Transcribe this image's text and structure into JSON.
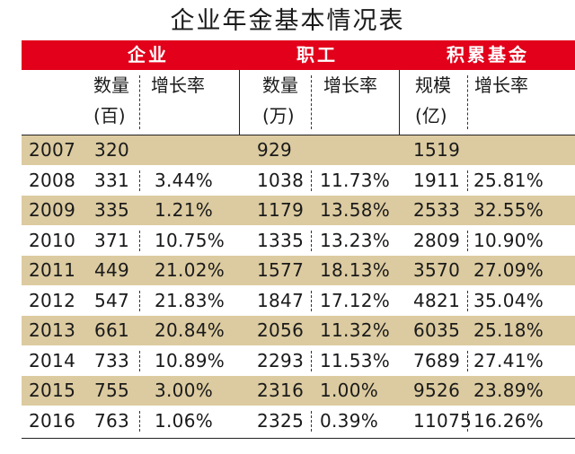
{
  "chart_data": {
    "type": "table",
    "title": "企业年金基本情况表",
    "groups": [
      "企业",
      "职工",
      "积累基金"
    ],
    "subheaders": [
      {
        "top": "数量",
        "bottom": "(百)"
      },
      {
        "top": "增长率",
        "bottom": ""
      },
      {
        "top": "数量",
        "bottom": "(万)"
      },
      {
        "top": "增长率",
        "bottom": ""
      },
      {
        "top": "规模",
        "bottom": "(亿)"
      },
      {
        "top": "增长率",
        "bottom": ""
      }
    ],
    "rows": [
      {
        "year": "2007",
        "ent": "320",
        "ent_g": "",
        "emp": "929",
        "emp_g": "",
        "fund": "1519",
        "fund_g": ""
      },
      {
        "year": "2008",
        "ent": "331",
        "ent_g": "3.44%",
        "emp": "1038",
        "emp_g": "11.73%",
        "fund": "1911",
        "fund_g": "25.81%"
      },
      {
        "year": "2009",
        "ent": "335",
        "ent_g": "1.21%",
        "emp": "1179",
        "emp_g": "13.58%",
        "fund": "2533",
        "fund_g": "32.55%"
      },
      {
        "year": "2010",
        "ent": "371",
        "ent_g": "10.75%",
        "emp": "1335",
        "emp_g": "13.23%",
        "fund": "2809",
        "fund_g": "10.90%"
      },
      {
        "year": "2011",
        "ent": "449",
        "ent_g": "21.02%",
        "emp": "1577",
        "emp_g": "18.13%",
        "fund": "3570",
        "fund_g": "27.09%"
      },
      {
        "year": "2012",
        "ent": "547",
        "ent_g": "21.83%",
        "emp": "1847",
        "emp_g": "17.12%",
        "fund": "4821",
        "fund_g": "35.04%"
      },
      {
        "year": "2013",
        "ent": "661",
        "ent_g": "20.84%",
        "emp": "2056",
        "emp_g": "11.32%",
        "fund": "6035",
        "fund_g": "25.18%"
      },
      {
        "year": "2014",
        "ent": "733",
        "ent_g": "10.89%",
        "emp": "2293",
        "emp_g": "11.53%",
        "fund": "7689",
        "fund_g": "27.41%"
      },
      {
        "year": "2015",
        "ent": "755",
        "ent_g": "3.00%",
        "emp": "2316",
        "emp_g": "1.00%",
        "fund": "9526",
        "fund_g": "23.89%"
      },
      {
        "year": "2016",
        "ent": "763",
        "ent_g": "1.06%",
        "emp": "2325",
        "emp_g": "0.39%",
        "fund": "11075",
        "fund_g": "16.26%"
      }
    ]
  },
  "colors": {
    "header_red": "#e2001a",
    "row_shade": "#dccba0",
    "header_text": "#ffffff",
    "body_text": "#1a1a1a"
  }
}
